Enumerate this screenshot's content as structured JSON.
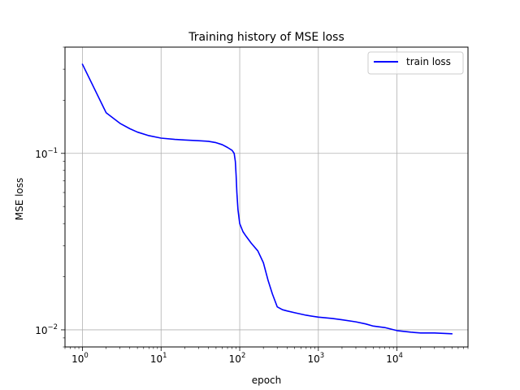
{
  "chart_data": {
    "type": "line",
    "title": "Training history of MSE loss",
    "xlabel": "epoch",
    "ylabel": "MSE loss",
    "xscale": "log",
    "yscale": "log",
    "xlim": [
      0.6,
      80000
    ],
    "ylim": [
      0.008,
      0.4
    ],
    "grid": true,
    "legend_position": "top-right",
    "x_ticks": [
      {
        "base": "10",
        "exp": "0",
        "value": 1
      },
      {
        "base": "10",
        "exp": "1",
        "value": 10
      },
      {
        "base": "10",
        "exp": "2",
        "value": 100
      },
      {
        "base": "10",
        "exp": "3",
        "value": 1000
      },
      {
        "base": "10",
        "exp": "4",
        "value": 10000
      }
    ],
    "y_ticks": [
      {
        "base": "10",
        "exp": "−2",
        "value": 0.01
      },
      {
        "base": "10",
        "exp": "−1",
        "value": 0.1
      }
    ],
    "series": [
      {
        "name": "train loss",
        "color": "#0000ff",
        "x": [
          1,
          2,
          3,
          4,
          5,
          7,
          10,
          15,
          20,
          30,
          40,
          50,
          60,
          70,
          80,
          85,
          88,
          90,
          92,
          95,
          100,
          110,
          120,
          140,
          170,
          200,
          230,
          260,
          300,
          350,
          400,
          500,
          700,
          1000,
          1500,
          2000,
          3000,
          4000,
          5000,
          7000,
          10000,
          15000,
          20000,
          30000,
          50000
        ],
        "y": [
          0.32,
          0.17,
          0.148,
          0.138,
          0.132,
          0.126,
          0.122,
          0.12,
          0.119,
          0.118,
          0.117,
          0.115,
          0.112,
          0.108,
          0.104,
          0.1,
          0.09,
          0.075,
          0.06,
          0.048,
          0.04,
          0.036,
          0.034,
          0.031,
          0.028,
          0.024,
          0.019,
          0.016,
          0.0135,
          0.013,
          0.0128,
          0.0125,
          0.0121,
          0.0118,
          0.0116,
          0.0114,
          0.0111,
          0.0108,
          0.0105,
          0.0103,
          0.0099,
          0.0097,
          0.0096,
          0.0096,
          0.0095
        ]
      }
    ]
  }
}
